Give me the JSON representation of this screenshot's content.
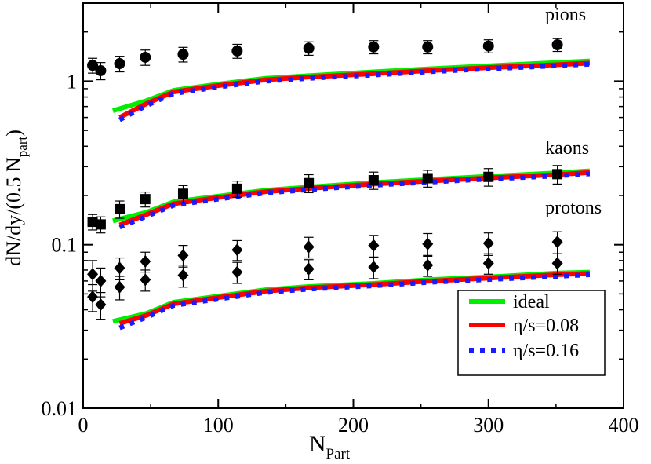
{
  "chart_data": {
    "type": "line",
    "title": "",
    "xlabel": "N",
    "xlabel_sub": "Part",
    "ylabel": "dN/dy/(0.5 N",
    "ylabel_sub": "part",
    "ylabel_end": ")",
    "xlim": [
      0,
      400
    ],
    "ylim": [
      0.01,
      3
    ],
    "yscale": "log",
    "x_ticks": [
      0,
      100,
      200,
      300,
      400
    ],
    "x_tick_labels": [
      "0",
      "100",
      "200",
      "300",
      "400"
    ],
    "y_ticks": [
      0.01,
      0.1,
      1
    ],
    "y_tick_labels": [
      "0.01",
      "0.1",
      "1"
    ],
    "grid": false,
    "legend_position": "bottom-right",
    "annotations": [
      {
        "text": "pions",
        "x": 342,
        "y": 2.35
      },
      {
        "text": "kaons",
        "x": 342,
        "y": 0.36
      },
      {
        "text": "protons",
        "x": 342,
        "y": 0.155
      }
    ],
    "series": [
      {
        "name": "ideal",
        "style": "solid",
        "color": "#00ee00",
        "groups": [
          {
            "x": [
              22,
              47,
              67,
              100,
              135,
              167,
              215,
              255,
              300,
              350,
              375
            ],
            "y": [
              0.66,
              0.76,
              0.88,
              0.96,
              1.04,
              1.08,
              1.14,
              1.19,
              1.24,
              1.3,
              1.33
            ]
          },
          {
            "x": [
              22,
              47,
              67,
              100,
              135,
              167,
              215,
              255,
              300,
              350,
              375
            ],
            "y": [
              0.14,
              0.158,
              0.183,
              0.198,
              0.215,
              0.225,
              0.24,
              0.25,
              0.262,
              0.275,
              0.283
            ]
          },
          {
            "x": [
              22,
              47,
              67,
              100,
              135,
              167,
              215,
              255,
              300,
              350,
              375
            ],
            "y": [
              0.034,
              0.038,
              0.0445,
              0.0485,
              0.053,
              0.0555,
              0.058,
              0.061,
              0.0635,
              0.067,
              0.068
            ]
          }
        ]
      },
      {
        "name": "η/s=0.08",
        "style": "solid",
        "color": "#ff0000",
        "groups": [
          {
            "x": [
              27,
              47,
              67,
              100,
              135,
              167,
              215,
              255,
              300,
              350,
              375
            ],
            "y": [
              0.6,
              0.73,
              0.86,
              0.94,
              1.02,
              1.06,
              1.11,
              1.16,
              1.21,
              1.26,
              1.29
            ]
          },
          {
            "x": [
              27,
              47,
              67,
              100,
              135,
              167,
              215,
              255,
              300,
              350,
              375
            ],
            "y": [
              0.132,
              0.153,
              0.178,
              0.194,
              0.211,
              0.221,
              0.235,
              0.245,
              0.256,
              0.268,
              0.276
            ]
          },
          {
            "x": [
              27,
              47,
              67,
              100,
              135,
              167,
              215,
              255,
              300,
              350,
              375
            ],
            "y": [
              0.033,
              0.037,
              0.0435,
              0.0475,
              0.052,
              0.0545,
              0.057,
              0.0598,
              0.0625,
              0.0655,
              0.0668
            ]
          }
        ]
      },
      {
        "name": "η/s=0.16",
        "style": "dotted",
        "color": "#1a1aff",
        "groups": [
          {
            "x": [
              27,
              47,
              67,
              100,
              135,
              167,
              215,
              255,
              300,
              350,
              375
            ],
            "y": [
              0.58,
              0.71,
              0.84,
              0.92,
              1.0,
              1.04,
              1.09,
              1.14,
              1.19,
              1.24,
              1.27
            ]
          },
          {
            "x": [
              27,
              47,
              67,
              100,
              135,
              167,
              215,
              255,
              300,
              350,
              375
            ],
            "y": [
              0.128,
              0.149,
              0.174,
              0.19,
              0.207,
              0.217,
              0.231,
              0.241,
              0.252,
              0.263,
              0.271
            ]
          },
          {
            "x": [
              27,
              47,
              67,
              100,
              135,
              167,
              215,
              255,
              300,
              350,
              375
            ],
            "y": [
              0.031,
              0.036,
              0.0425,
              0.0465,
              0.051,
              0.0535,
              0.056,
              0.0588,
              0.0612,
              0.064,
              0.0655
            ]
          }
        ]
      }
    ],
    "data_points": [
      {
        "name": "pions",
        "marker": "circle",
        "x": [
          7,
          13,
          27,
          46,
          74,
          114,
          167,
          215,
          255,
          300,
          351
        ],
        "y": [
          1.25,
          1.16,
          1.28,
          1.4,
          1.46,
          1.53,
          1.59,
          1.62,
          1.62,
          1.64,
          1.67
        ],
        "err": [
          0.13,
          0.14,
          0.14,
          0.15,
          0.15,
          0.15,
          0.15,
          0.15,
          0.15,
          0.15,
          0.15
        ]
      },
      {
        "name": "kaons",
        "marker": "square",
        "x": [
          7,
          13,
          27,
          46,
          74,
          114,
          167,
          215,
          255,
          300,
          351
        ],
        "y": [
          0.138,
          0.133,
          0.165,
          0.19,
          0.205,
          0.22,
          0.238,
          0.248,
          0.255,
          0.26,
          0.27
        ],
        "err": [
          0.015,
          0.015,
          0.02,
          0.02,
          0.025,
          0.025,
          0.03,
          0.03,
          0.03,
          0.032,
          0.035
        ]
      },
      {
        "name": "protons upper",
        "marker": "diamond",
        "x": [
          7,
          13,
          27,
          46,
          74,
          114,
          167,
          215,
          255,
          300,
          351
        ],
        "y": [
          0.066,
          0.06,
          0.072,
          0.079,
          0.086,
          0.093,
          0.097,
          0.099,
          0.101,
          0.102,
          0.104
        ],
        "err": [
          0.014,
          0.012,
          0.011,
          0.011,
          0.013,
          0.013,
          0.014,
          0.015,
          0.016,
          0.016,
          0.016
        ]
      },
      {
        "name": "protons lower",
        "marker": "diamond",
        "x": [
          7,
          13,
          27,
          46,
          74,
          114,
          167,
          215,
          255,
          300,
          351
        ],
        "y": [
          0.048,
          0.043,
          0.055,
          0.061,
          0.065,
          0.068,
          0.071,
          0.073,
          0.075,
          0.077,
          0.077
        ],
        "err": [
          0.009,
          0.008,
          0.009,
          0.009,
          0.01,
          0.01,
          0.01,
          0.011,
          0.011,
          0.011,
          0.011
        ]
      }
    ]
  }
}
